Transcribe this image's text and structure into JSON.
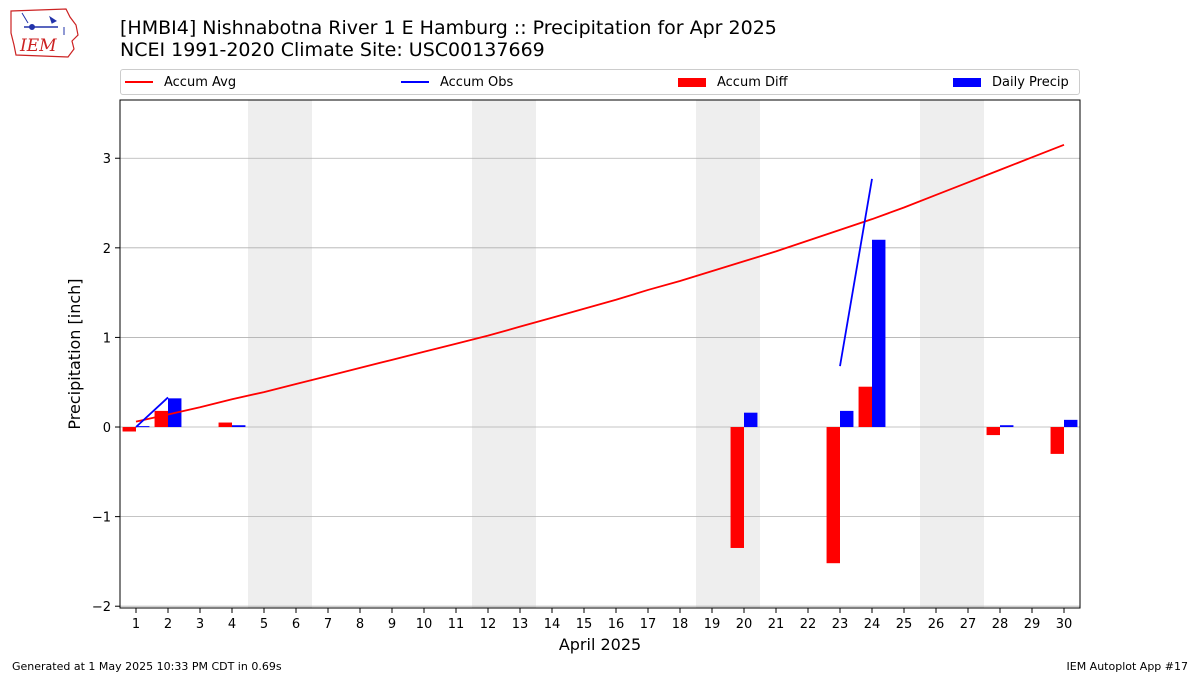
{
  "header": {
    "logo_text": "IEM",
    "title_line1": "[HMBI4] Nishnabotna River 1 E Hamburg :: Precipitation for Apr 2025",
    "title_line2": "NCEI 1991-2020 Climate Site: USC00137669"
  },
  "legend": {
    "placement": "top",
    "items": [
      {
        "label": "Accum Avg",
        "kind": "line",
        "color": "#ff0000"
      },
      {
        "label": "Accum Obs",
        "kind": "line",
        "color": "#0000ff"
      },
      {
        "label": "Accum Diff",
        "kind": "bar",
        "color": "#ff0000"
      },
      {
        "label": "Daily Precip",
        "kind": "bar",
        "color": "#0000ff"
      }
    ]
  },
  "footer": {
    "left": "Generated at 1 May 2025 10:33 PM CDT in 0.69s",
    "right": "IEM Autoplot App #17"
  },
  "chart_data": {
    "type": "bar",
    "xlabel": "April 2025",
    "ylabel": "Precipitation [inch]",
    "ylim": [
      -2.02,
      3.65
    ],
    "xlim": [
      0.5,
      30.5
    ],
    "yticks": [
      -2,
      -1,
      0,
      1,
      2,
      3
    ],
    "ytick_labels": [
      "−2",
      "−1",
      "0",
      "1",
      "2",
      "3"
    ],
    "categories": [
      "1",
      "2",
      "3",
      "4",
      "5",
      "6",
      "7",
      "8",
      "9",
      "10",
      "11",
      "12",
      "13",
      "14",
      "15",
      "16",
      "17",
      "18",
      "19",
      "20",
      "21",
      "22",
      "23",
      "24",
      "25",
      "26",
      "27",
      "28",
      "29",
      "30"
    ],
    "grid": "horizontal",
    "weekend_shading": [
      [
        4.5,
        6.5
      ],
      [
        11.5,
        13.5
      ],
      [
        18.5,
        20.5
      ],
      [
        25.5,
        27.5
      ]
    ],
    "colors": {
      "avg": "#ff0000",
      "obs": "#0000ff",
      "diff": "#ff0000",
      "daily": "#0000ff",
      "weekend": "#eeeeee",
      "grid": "#b0b0b0"
    },
    "series": [
      {
        "name": "Accum Avg",
        "type": "line",
        "x": [
          1,
          2,
          3,
          4,
          5,
          6,
          7,
          8,
          9,
          10,
          11,
          12,
          13,
          14,
          15,
          16,
          17,
          18,
          19,
          20,
          21,
          22,
          23,
          24,
          25,
          26,
          27,
          28,
          29,
          30
        ],
        "values": [
          0.06,
          0.14,
          0.22,
          0.31,
          0.39,
          0.48,
          0.57,
          0.66,
          0.75,
          0.84,
          0.93,
          1.02,
          1.12,
          1.22,
          1.32,
          1.42,
          1.53,
          1.63,
          1.74,
          1.85,
          1.96,
          2.08,
          2.2,
          2.32,
          2.45,
          2.59,
          2.73,
          2.87,
          3.01,
          3.15
        ]
      },
      {
        "name": "Accum Obs",
        "type": "line",
        "segments": [
          {
            "x": [
              1,
              2
            ],
            "values": [
              0.0,
              0.33
            ]
          },
          {
            "x": [
              23,
              24
            ],
            "values": [
              0.68,
              2.77
            ]
          }
        ]
      },
      {
        "name": "Accum Diff",
        "type": "bar",
        "x": [
          1,
          2,
          4,
          20,
          23,
          24,
          28,
          30
        ],
        "values": [
          -0.05,
          0.18,
          0.05,
          -1.35,
          -1.52,
          0.45,
          -0.09,
          -0.3
        ]
      },
      {
        "name": "Daily Precip",
        "type": "bar",
        "x": [
          1,
          2,
          4,
          20,
          23,
          24,
          28,
          30
        ],
        "values": [
          0.01,
          0.32,
          0.02,
          0.16,
          0.18,
          2.09,
          0.02,
          0.08
        ]
      }
    ]
  }
}
